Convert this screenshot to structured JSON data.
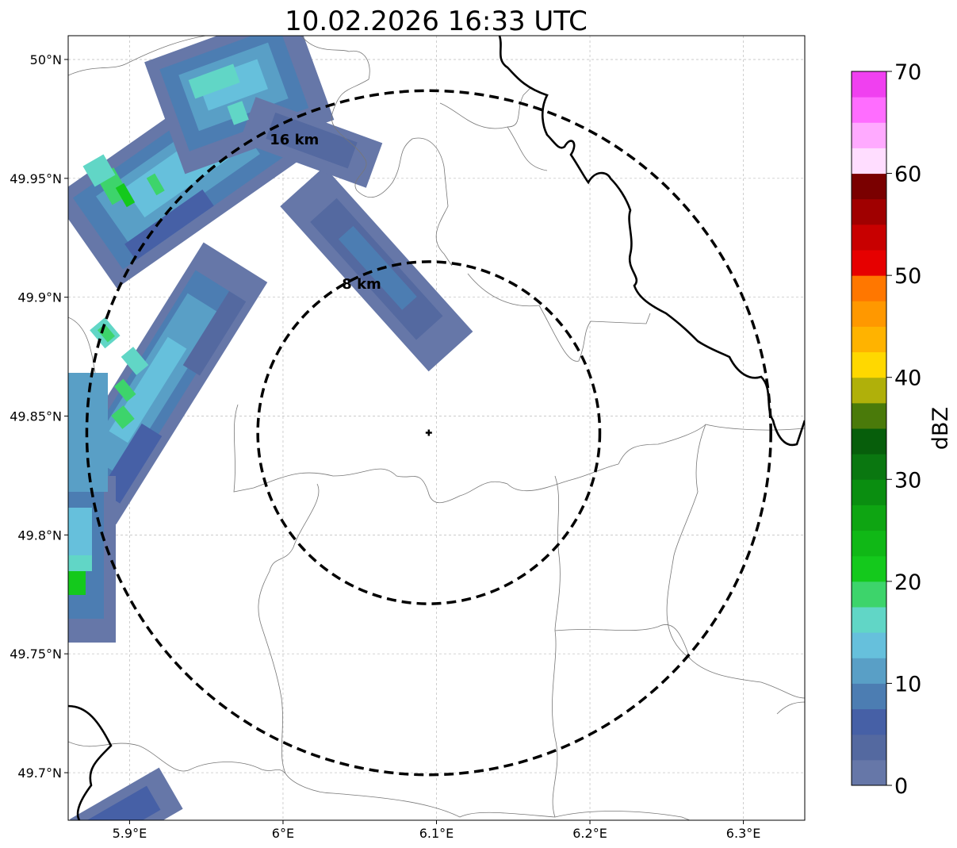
{
  "title": "10.02.2026 16:33 UTC",
  "map": {
    "lon_range": [
      5.86,
      6.34
    ],
    "lat_range": [
      49.68,
      50.01
    ],
    "x_ticks": [
      {
        "lon": 5.9,
        "label": "5.9°E"
      },
      {
        "lon": 6.0,
        "label": "6°E"
      },
      {
        "lon": 6.1,
        "label": "6.1°E"
      },
      {
        "lon": 6.2,
        "label": "6.2°E"
      },
      {
        "lon": 6.3,
        "label": "6.3°E"
      }
    ],
    "y_ticks": [
      {
        "lat": 50.0,
        "label": "50°N"
      },
      {
        "lat": 49.95,
        "label": "49.95°N"
      },
      {
        "lat": 49.9,
        "label": "49.9°N"
      },
      {
        "lat": 49.85,
        "label": "49.85°N"
      },
      {
        "lat": 49.8,
        "label": "49.8°N"
      },
      {
        "lat": 49.75,
        "label": "49.75°N"
      },
      {
        "lat": 49.7,
        "label": "49.7°N"
      }
    ],
    "grid": true,
    "center": {
      "lon": 6.095,
      "lat": 49.843
    },
    "rings": [
      {
        "radius_km": 8,
        "label": "8 km"
      },
      {
        "radius_km": 16,
        "label": "16 km"
      }
    ]
  },
  "colorbar": {
    "label": "dBZ",
    "min": 0,
    "max": 70,
    "ticks": [
      {
        "value": 0,
        "label": "0"
      },
      {
        "value": 10,
        "label": "10"
      },
      {
        "value": 20,
        "label": "20"
      },
      {
        "value": 30,
        "label": "30"
      },
      {
        "value": 40,
        "label": "40"
      },
      {
        "value": 50,
        "label": "50"
      },
      {
        "value": 60,
        "label": "60"
      },
      {
        "value": 70,
        "label": "70"
      }
    ],
    "colors": [
      "#6677a8",
      "#5469a0",
      "#4660a6",
      "#4c7db2",
      "#599fc6",
      "#66c0dc",
      "#61d6c6",
      "#3dd46b",
      "#14c91c",
      "#10b816",
      "#0ea512",
      "#0a8e10",
      "#0a7710",
      "#075e0b",
      "#4a7a0a",
      "#b0b00a",
      "#ffd800",
      "#ffb300",
      "#ff9800",
      "#ff7700",
      "#e60000",
      "#c80000",
      "#a00000",
      "#7a0000",
      "#ffddff",
      "#ffaaff",
      "#ff6dff",
      "#f040f0"
    ]
  }
}
